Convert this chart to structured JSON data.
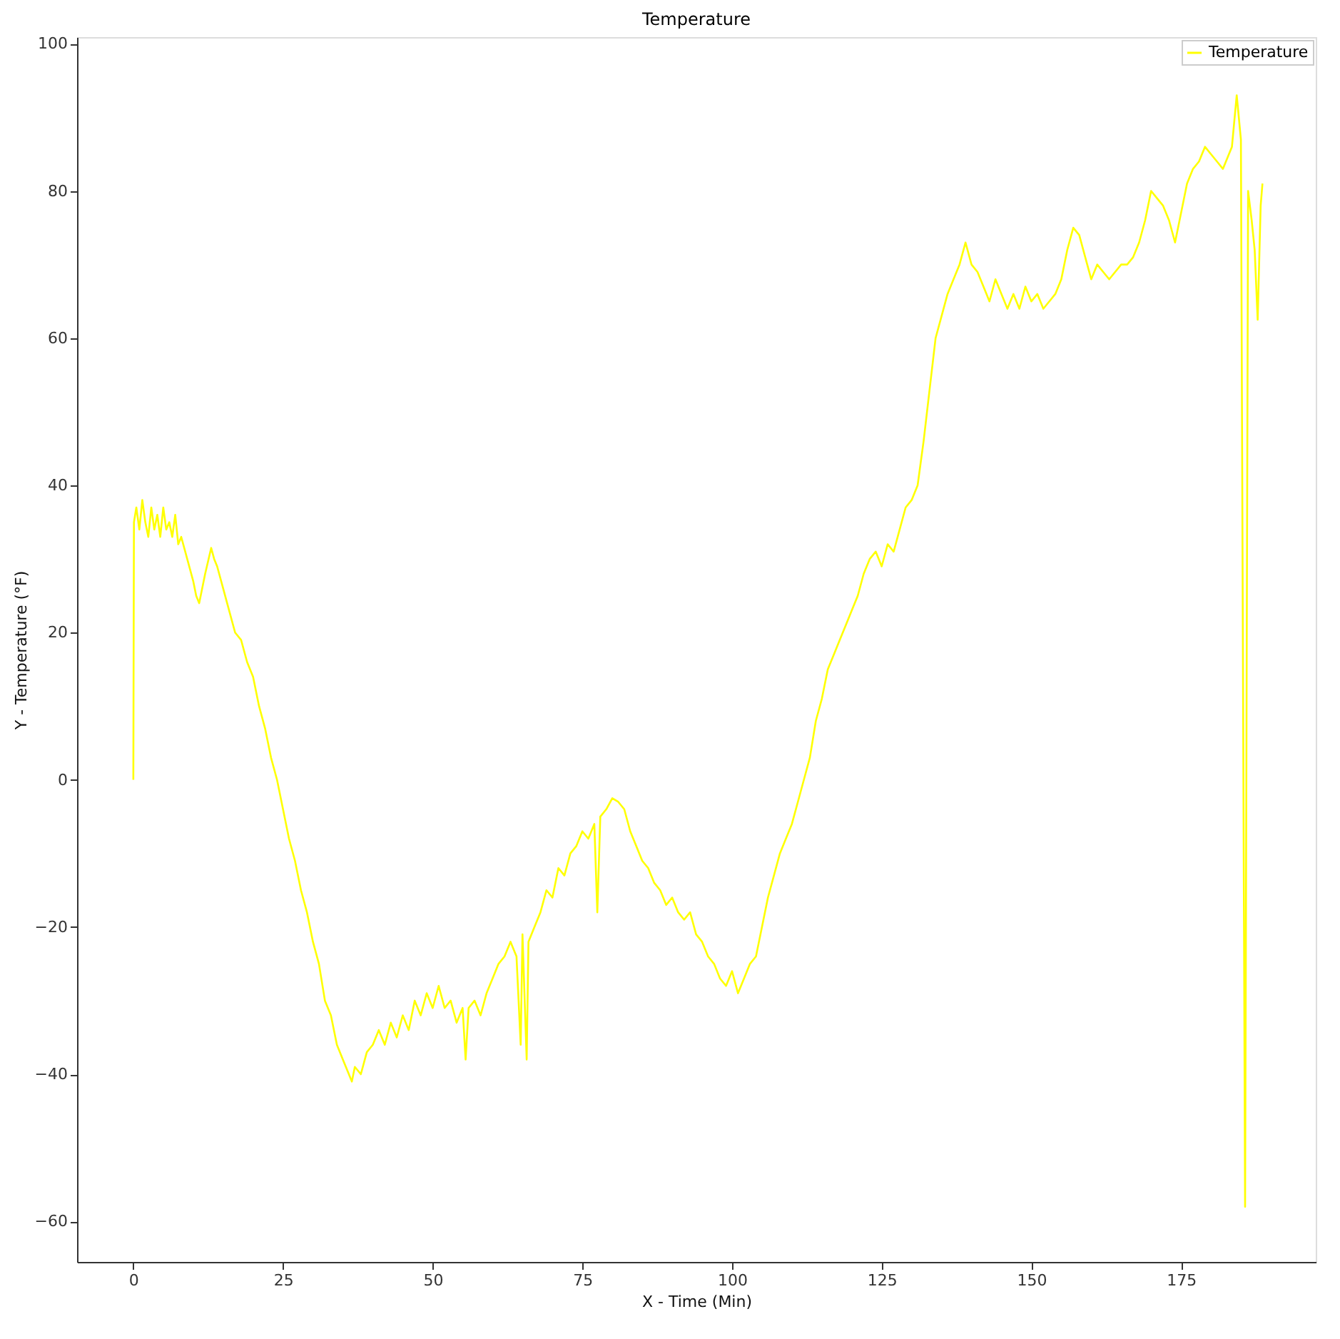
{
  "chart_data": {
    "type": "line",
    "title": "Temperature",
    "xlabel": "X - Time (Min)",
    "ylabel": "Y - Temperature (°F)",
    "xlim": [
      -9.4,
      197.5
    ],
    "ylim": [
      -65.5,
      100.9
    ],
    "xticks": [
      0,
      25,
      50,
      75,
      100,
      125,
      150,
      175
    ],
    "yticks": [
      -60,
      -40,
      -20,
      0,
      20,
      40,
      60,
      80,
      100
    ],
    "grid": false,
    "legend": "top right",
    "line_style": "solid",
    "series": [
      {
        "name": "Temperature",
        "color": "#ffff00",
        "x": [
          0,
          0.1,
          0.5,
          1,
          1.5,
          2,
          2.5,
          3,
          3.5,
          4,
          4.5,
          5,
          5.5,
          6,
          6.5,
          7,
          7.5,
          8,
          9,
          10,
          10.5,
          11,
          12,
          13,
          13.5,
          14,
          15,
          16,
          17,
          18,
          19,
          20,
          21,
          22,
          23,
          24,
          25,
          26,
          27,
          28,
          29,
          30,
          31,
          32,
          33,
          34,
          35,
          36,
          36.5,
          37,
          38,
          39,
          40,
          41,
          42,
          43,
          44,
          45,
          46,
          47,
          48,
          49,
          50,
          51,
          52,
          53,
          54,
          55,
          55.5,
          56,
          57,
          58,
          59,
          60,
          61,
          62,
          63,
          64,
          64.7,
          65,
          65.7,
          66,
          67,
          68,
          69,
          70,
          71,
          72,
          73,
          74,
          75,
          76,
          77,
          77.5,
          78,
          79,
          80,
          81,
          82,
          83,
          84,
          85,
          86,
          87,
          88,
          89,
          90,
          91,
          92,
          93,
          94,
          95,
          96,
          97,
          98,
          99,
          100,
          101,
          102,
          103,
          104,
          105,
          106,
          107,
          108,
          109,
          110,
          111,
          112,
          113,
          114,
          115,
          116,
          117,
          118,
          119,
          120,
          121,
          122,
          123,
          124,
          125,
          126,
          127,
          128,
          129,
          130,
          131,
          132,
          133,
          134,
          135,
          136,
          137,
          138,
          139,
          140,
          141,
          142,
          143,
          144,
          145,
          146,
          147,
          148,
          149,
          150,
          151,
          152,
          153,
          154,
          155,
          156,
          157,
          158,
          159,
          160,
          161,
          162,
          163,
          164,
          165,
          166,
          167,
          168,
          169,
          170,
          171,
          172,
          173,
          174,
          175,
          176,
          177,
          178,
          179,
          180,
          181,
          182,
          183,
          183.5,
          184.3,
          185,
          185.7,
          186.2,
          186.8,
          187.3,
          187.8,
          188.3,
          188.6
        ],
        "values": [
          0,
          35,
          37,
          34,
          38,
          35,
          33,
          37,
          34,
          36,
          33,
          37,
          34,
          35,
          33,
          36,
          32,
          33,
          30,
          27,
          25,
          24,
          28,
          31.5,
          30,
          29,
          26,
          23,
          20,
          19,
          16,
          14,
          10,
          7,
          3,
          0,
          -4,
          -8,
          -11,
          -15,
          -18,
          -22,
          -25,
          -30,
          -32,
          -36,
          -38,
          -40,
          -41,
          -39,
          -40,
          -37,
          -36,
          -34,
          -36,
          -33,
          -35,
          -32,
          -34,
          -30,
          -32,
          -29,
          -31,
          -28,
          -31,
          -30,
          -33,
          -31,
          -38,
          -31,
          -30,
          -32,
          -29,
          -27,
          -25,
          -24,
          -22,
          -24,
          -36,
          -21,
          -38,
          -22,
          -20,
          -18,
          -15,
          -16,
          -12,
          -13,
          -10,
          -9,
          -7,
          -8,
          -6,
          -18,
          -5,
          -4,
          -2.5,
          -3,
          -4,
          -7,
          -9,
          -11,
          -12,
          -14,
          -15,
          -17,
          -16,
          -18,
          -19,
          -18,
          -21,
          -22,
          -24,
          -25,
          -27,
          -28,
          -26,
          -29,
          -27,
          -25,
          -24,
          -20,
          -16,
          -13,
          -10,
          -8,
          -6,
          -3,
          0,
          3,
          8,
          11,
          15,
          17,
          19,
          21,
          23,
          25,
          28,
          30,
          31,
          29,
          32,
          31,
          34,
          37,
          38,
          40,
          46,
          53,
          60,
          63,
          66,
          68,
          70,
          73,
          70,
          69,
          67,
          65,
          68,
          66,
          64,
          66,
          64,
          67,
          65,
          66,
          64,
          65,
          66,
          68,
          72,
          75,
          74,
          71,
          68,
          70,
          69,
          68,
          69,
          70,
          70,
          71,
          73,
          76,
          80,
          79,
          78,
          76,
          73,
          77,
          81,
          83,
          84,
          86,
          85,
          84,
          83,
          85,
          86,
          93,
          87,
          -58,
          80,
          76,
          72,
          62.5,
          78,
          81
        ]
      }
    ]
  }
}
